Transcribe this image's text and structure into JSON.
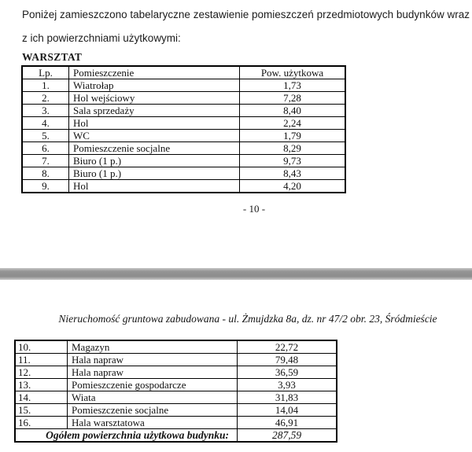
{
  "intro": {
    "line1": "Poniżej zamieszczono tabelaryczne zestawienie pomieszczeń przedmiotowych budynków wraz",
    "line2": "z ich powierzchniami użytkowymi:"
  },
  "section_title": "WARSZTAT",
  "table1": {
    "headers": [
      "Lp.",
      "Pomieszczenie",
      "Pow. użytkowa"
    ],
    "rows": [
      [
        "1.",
        "Wiatrołap",
        "1,73"
      ],
      [
        "2.",
        "Hol wejściowy",
        "7,28"
      ],
      [
        "3.",
        "Sala sprzedaży",
        "8,40"
      ],
      [
        "4.",
        "Hol",
        "2,24"
      ],
      [
        "5.",
        "WC",
        "1,79"
      ],
      [
        "6.",
        "Pomieszczenie socjalne",
        "8,29"
      ],
      [
        "7.",
        "Biuro (1 p.)",
        "9,73"
      ],
      [
        "8.",
        "Biuro (1 p.)",
        "8,43"
      ],
      [
        "9.",
        "Hol",
        "4,20"
      ]
    ]
  },
  "page_number": "- 10 -",
  "caption": "Nieruchomość gruntowa zabudowana - ul. Żmujdzka 8a, dz. nr 47/2 obr. 23, Śródmieście",
  "table2": {
    "rows": [
      [
        "10.",
        "Magazyn",
        "22,72"
      ],
      [
        "11.",
        "Hala napraw",
        "79,48"
      ],
      [
        "12.",
        "Hala napraw",
        "36,59"
      ],
      [
        "13.",
        "Pomieszczenie gospodarcze",
        "3,93"
      ],
      [
        "14.",
        "Wiata",
        "31,83"
      ],
      [
        "15.",
        "Pomieszczenie socjalne",
        "14,04"
      ],
      [
        "16.",
        "Hala warsztatowa",
        "46,91"
      ]
    ],
    "total_label": "Ogółem powierzchnia użytkowa budynku:",
    "total_value": "287,59"
  },
  "colors": {
    "divider_gray": "#919191",
    "text": "#1a1a1a",
    "table_border": "#000000"
  }
}
